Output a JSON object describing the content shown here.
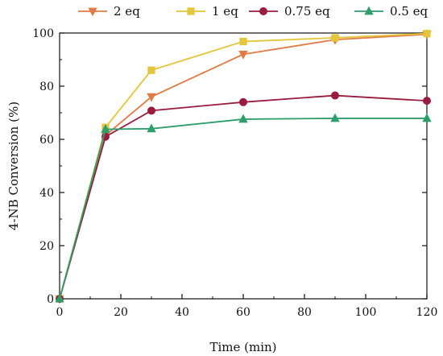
{
  "chart_data": {
    "type": "line",
    "xlabel": "Time (min)",
    "ylabel": "4-NB Conversion (%)",
    "xlim": [
      0,
      120
    ],
    "ylim": [
      0,
      100
    ],
    "xticks": [
      0,
      20,
      40,
      60,
      80,
      100,
      120
    ],
    "yticks": [
      0,
      20,
      40,
      60,
      80,
      100
    ],
    "grid": false,
    "legend_position": "top",
    "series": [
      {
        "name": "2 eq",
        "marker": "triangle-down",
        "color": "#e07b45",
        "x": [
          0,
          15,
          30,
          60,
          90,
          120
        ],
        "y": [
          0,
          61.5,
          76,
          92,
          97.5,
          99.5
        ]
      },
      {
        "name": "1 eq",
        "marker": "square",
        "color": "#e3c63a",
        "x": [
          0,
          15,
          30,
          60,
          90,
          120
        ],
        "y": [
          0,
          64.5,
          86,
          96.8,
          98.2,
          99.8
        ]
      },
      {
        "name": "0.75 eq",
        "marker": "circle",
        "color": "#9b1b3e",
        "x": [
          0,
          15,
          30,
          60,
          90,
          120
        ],
        "y": [
          0,
          61,
          70.8,
          74,
          76.5,
          74.5
        ]
      },
      {
        "name": "0.5 eq",
        "marker": "triangle-up",
        "color": "#2e9e6a",
        "x": [
          0,
          15,
          30,
          60,
          90,
          120
        ],
        "y": [
          0,
          63.8,
          64,
          67.6,
          67.9,
          67.9
        ]
      }
    ]
  }
}
